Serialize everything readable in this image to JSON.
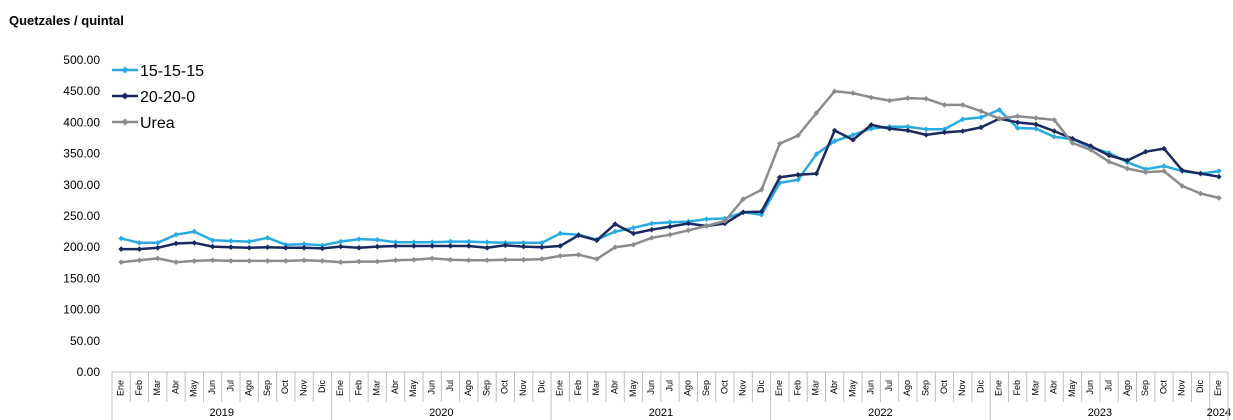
{
  "chart_data": {
    "type": "line",
    "title": "",
    "ylabel": "Quetzales / quintal",
    "xlabel": "",
    "ylim": [
      0,
      500
    ],
    "yticks": [
      "0.00",
      "50.00",
      "100.00",
      "150.00",
      "200.00",
      "250.00",
      "300.00",
      "350.00",
      "400.00",
      "450.00",
      "500.00"
    ],
    "grid": false,
    "legend_position": "top-left",
    "categories": [
      "Ene",
      "Feb",
      "Mar",
      "Abr",
      "May",
      "Jun",
      "Jul",
      "Ago",
      "Sep",
      "Oct",
      "Nov",
      "Dic",
      "Ene",
      "Feb",
      "Mar",
      "Abr",
      "May",
      "Jun",
      "Jul",
      "Ago",
      "Sep",
      "Oct",
      "Nov",
      "Dic",
      "Ene",
      "Feb",
      "Mar",
      "Abr",
      "May",
      "Jun",
      "Jul",
      "Ago",
      "Sep",
      "Oct",
      "Nov",
      "Dic",
      "Ene",
      "Feb",
      "Mar",
      "Abr",
      "May",
      "Jun",
      "Jul",
      "Ago",
      "Sep",
      "Oct",
      "Nov",
      "Dic",
      "Ene",
      "Feb",
      "Mar",
      "Abr",
      "May",
      "Jun",
      "Jul",
      "Ago",
      "Sep",
      "Oct",
      "Nov",
      "Dic",
      "Ene"
    ],
    "years": [
      {
        "label": "2019",
        "start": 0,
        "end": 11
      },
      {
        "label": "2020",
        "start": 12,
        "end": 23
      },
      {
        "label": "2021",
        "start": 24,
        "end": 35
      },
      {
        "label": "2022",
        "start": 36,
        "end": 47
      },
      {
        "label": "2023",
        "start": 48,
        "end": 59
      },
      {
        "label": "2024",
        "start": 60,
        "end": 60
      }
    ],
    "series": [
      {
        "name": "15-15-15",
        "color": "#29abe2",
        "values": [
          214,
          207,
          207,
          220,
          225,
          211,
          210,
          209,
          215,
          204,
          205,
          203,
          209,
          213,
          212,
          208,
          208,
          208,
          209,
          209,
          208,
          207,
          207,
          207,
          222,
          220,
          212,
          225,
          231,
          238,
          240,
          241,
          245,
          246,
          256,
          252,
          303,
          308,
          349,
          370,
          380,
          390,
          393,
          393,
          389,
          389,
          405,
          408,
          420,
          391,
          390,
          377,
          373,
          360,
          351,
          336,
          325,
          330,
          322,
          318,
          322
        ]
      },
      {
        "name": "20-20-0",
        "color": "#1a2a5e",
        "values": [
          197,
          197,
          199,
          206,
          207,
          201,
          200,
          199,
          200,
          199,
          199,
          198,
          201,
          199,
          201,
          202,
          202,
          202,
          202,
          202,
          199,
          203,
          201,
          200,
          202,
          219,
          211,
          237,
          222,
          228,
          233,
          238,
          234,
          238,
          256,
          257,
          312,
          316,
          318,
          387,
          372,
          396,
          390,
          387,
          380,
          384,
          386,
          392,
          406,
          400,
          397,
          386,
          374,
          362,
          347,
          339,
          353,
          358,
          323,
          318,
          313
        ]
      },
      {
        "name": "Urea",
        "color": "#8c8c8c",
        "values": [
          176,
          179,
          182,
          176,
          178,
          179,
          178,
          178,
          178,
          178,
          179,
          178,
          176,
          177,
          177,
          179,
          180,
          182,
          180,
          179,
          179,
          180,
          180,
          181,
          186,
          188,
          181,
          200,
          204,
          215,
          220,
          227,
          234,
          242,
          277,
          292,
          366,
          379,
          415,
          450,
          447,
          440,
          435,
          439,
          438,
          428,
          428,
          418,
          406,
          410,
          407,
          404,
          367,
          356,
          337,
          326,
          320,
          322,
          298,
          286,
          279
        ]
      }
    ]
  }
}
